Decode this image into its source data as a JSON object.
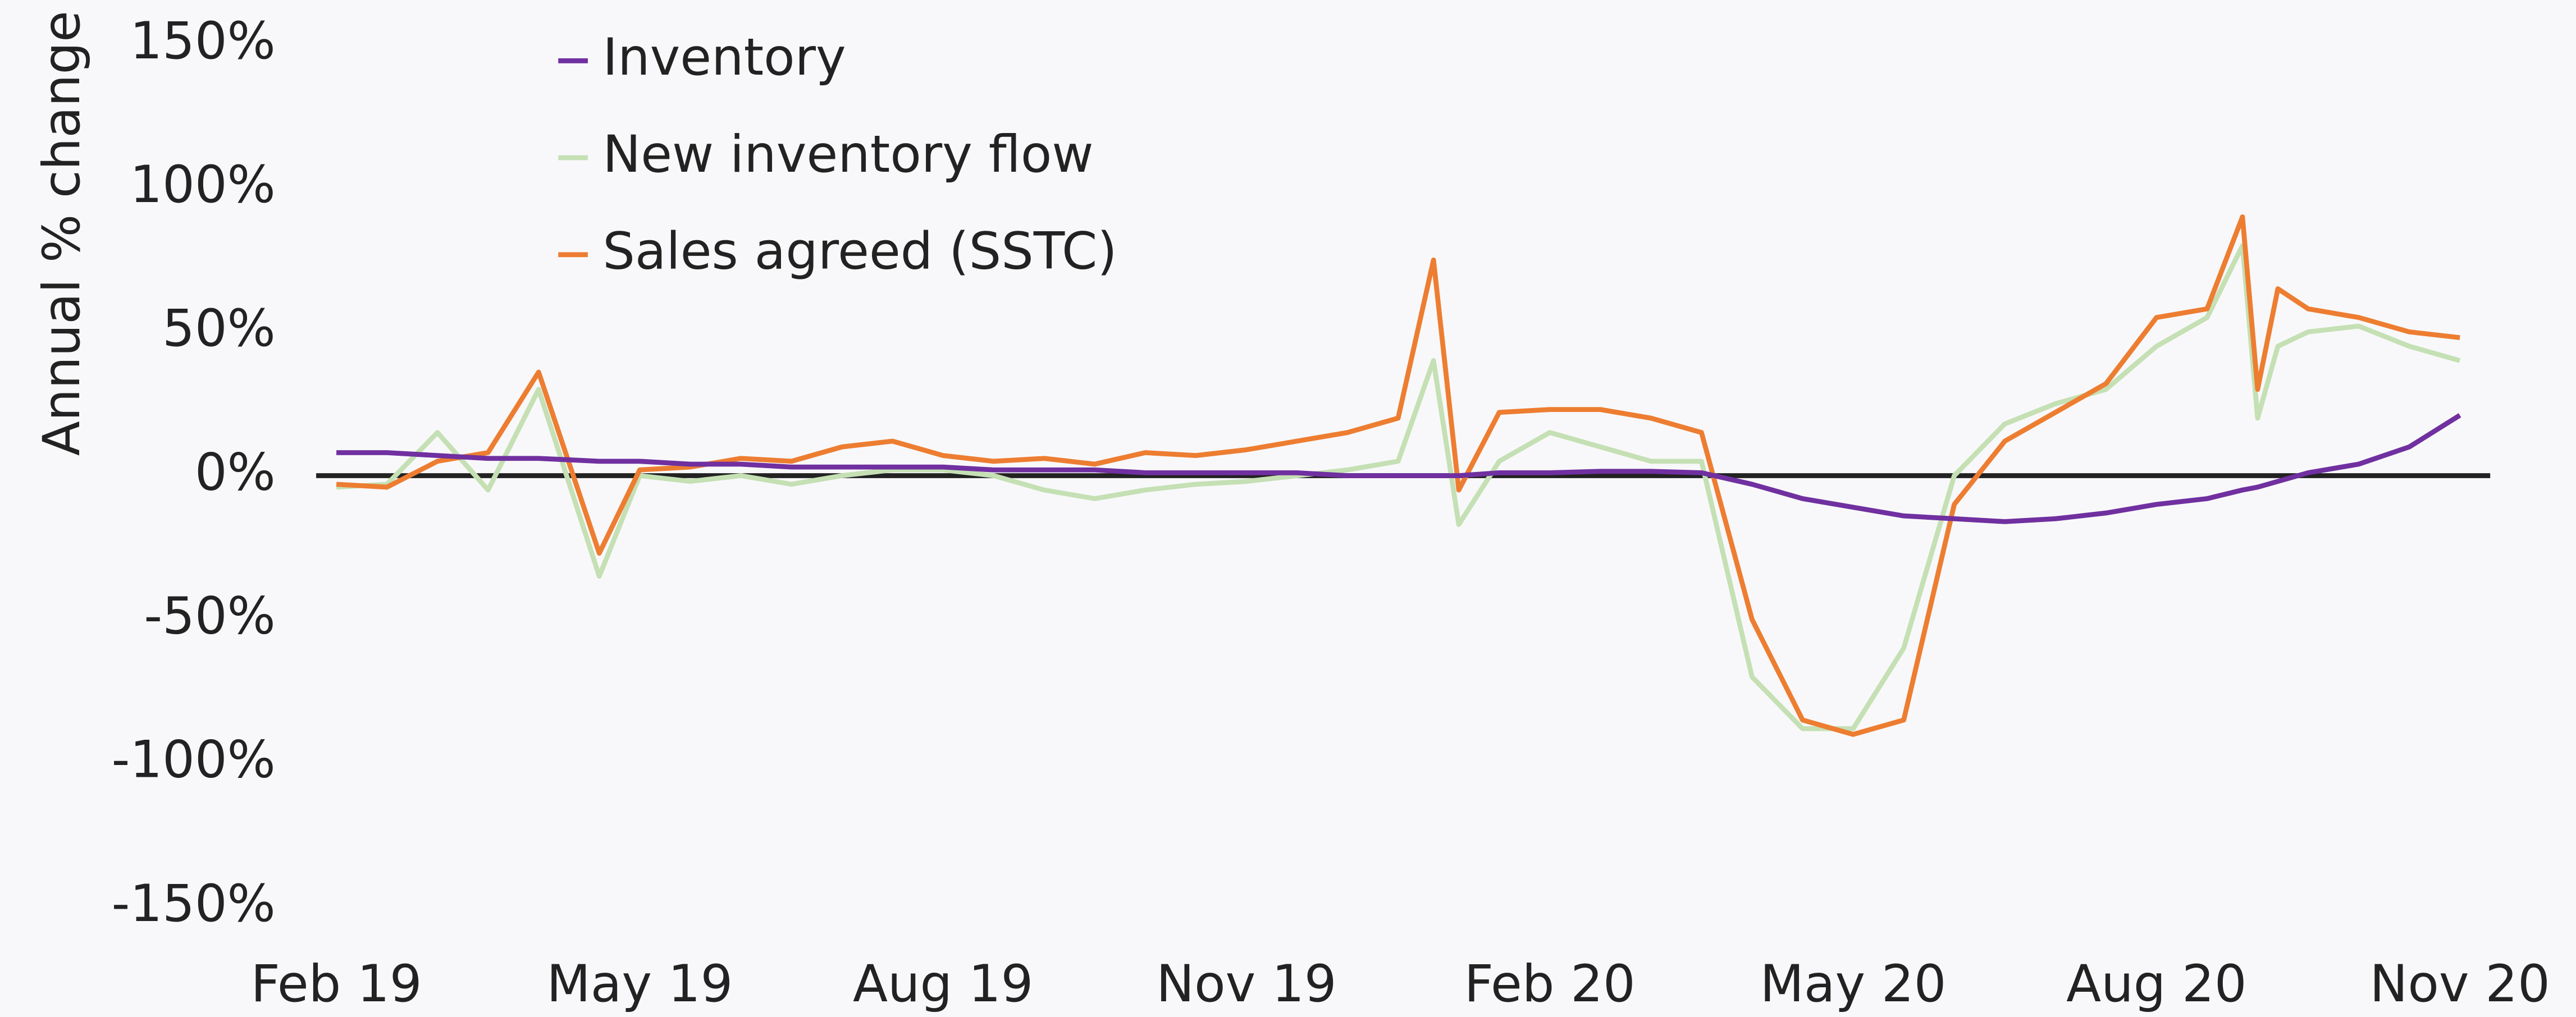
{
  "chart_data": {
    "type": "line",
    "y_label": "Annual % change",
    "x": [
      0,
      0.5,
      1,
      1.5,
      2,
      2.6,
      3,
      3.5,
      4,
      4.5,
      5,
      5.5,
      6,
      6.5,
      7,
      7.5,
      8,
      8.5,
      9,
      9.5,
      10,
      10.5,
      10.85,
      11.1,
      11.5,
      12,
      12.5,
      13,
      13.5,
      14,
      14.5,
      15,
      15.5,
      16,
      16.5,
      17,
      17.5,
      18,
      18.5,
      18.85,
      19.0,
      19.2,
      19.5,
      20,
      20.5,
      21
    ],
    "series": [
      {
        "name": "New inventory flow",
        "color": "#c5e0b4",
        "values": [
          -4,
          -3,
          15,
          -5,
          30,
          -35,
          0,
          -2,
          0,
          -3,
          0,
          2,
          2,
          0,
          -5,
          -8,
          -5,
          -3,
          -2,
          0,
          2,
          5,
          40,
          -17,
          5,
          15,
          10,
          5,
          5,
          -70,
          -88,
          -88,
          -60,
          0,
          18,
          25,
          30,
          45,
          55,
          80,
          20,
          45,
          50,
          52,
          45,
          40
        ]
      },
      {
        "name": "Sales agreed (SSTC)",
        "color": "#ed7d31",
        "values": [
          -3,
          -4,
          5,
          8,
          36,
          -27,
          2,
          3,
          6,
          5,
          10,
          12,
          7,
          5,
          6,
          4,
          8,
          7,
          9,
          12,
          15,
          20,
          75,
          -5,
          22,
          23,
          23,
          20,
          15,
          -50,
          -85,
          -90,
          -85,
          -10,
          12,
          22,
          32,
          55,
          58,
          90,
          30,
          65,
          58,
          55,
          50,
          48
        ]
      },
      {
        "name": "Inventory",
        "color": "#7030a0",
        "values": [
          8,
          8,
          7,
          6,
          6,
          5,
          5,
          4,
          4,
          3,
          3,
          3,
          3,
          2,
          2,
          2,
          1,
          1,
          1,
          1,
          0,
          0,
          0,
          0,
          1,
          1,
          1.5,
          1.5,
          1,
          -3,
          -8,
          -11,
          -14,
          -15,
          -16,
          -15,
          -13,
          -10,
          -8,
          -5,
          -4,
          -2,
          1,
          4,
          10,
          21
        ]
      }
    ],
    "legend_order": [
      2,
      0,
      1
    ],
    "xlim": [
      -0.2,
      21.3
    ],
    "xticks": [
      {
        "value": 0,
        "label": "Feb 19"
      },
      {
        "value": 3,
        "label": "May 19"
      },
      {
        "value": 6,
        "label": "Aug 19"
      },
      {
        "value": 9,
        "label": "Nov 19"
      },
      {
        "value": 12,
        "label": "Feb 20"
      },
      {
        "value": 15,
        "label": "May 20"
      },
      {
        "value": 18,
        "label": "Aug 20"
      },
      {
        "value": 21,
        "label": "Nov 20"
      }
    ],
    "ylim": [
      -150,
      150
    ],
    "yticks": [
      {
        "value": -150,
        "label": "-150%"
      },
      {
        "value": -100,
        "label": "-100%"
      },
      {
        "value": -50,
        "label": "-50%"
      },
      {
        "value": 0,
        "label": "0%"
      },
      {
        "value": 50,
        "label": "50%"
      },
      {
        "value": 100,
        "label": "100%"
      },
      {
        "value": 150,
        "label": "150%"
      }
    ],
    "zero_line": true
  }
}
